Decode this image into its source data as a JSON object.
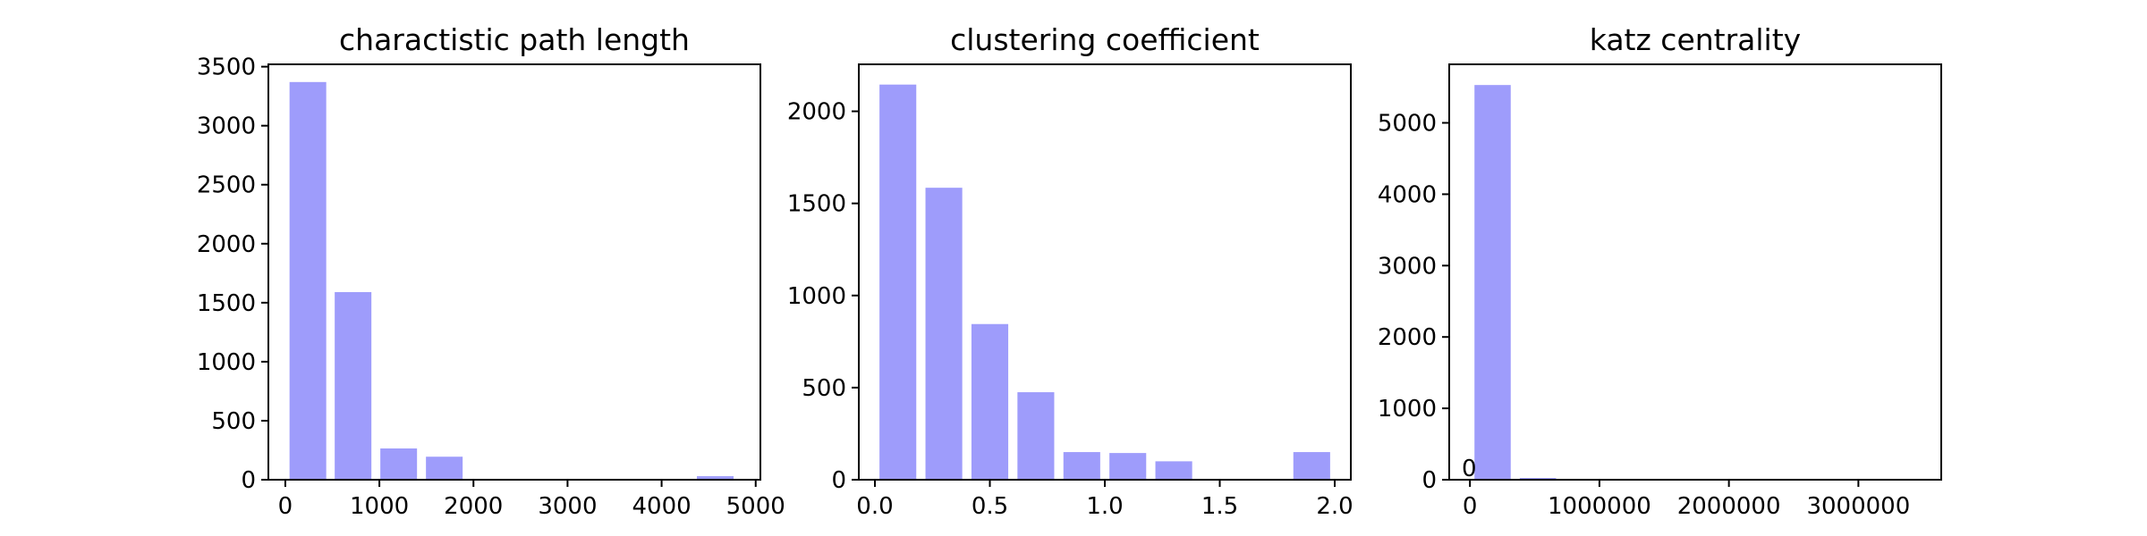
{
  "chart_data": [
    {
      "type": "bar",
      "title": "charactistic path length",
      "xlabel": "",
      "ylabel": "",
      "color": "#9e9cfb",
      "xlim": [
        -180,
        5050
      ],
      "ylim": [
        0,
        3520
      ],
      "x_ticks": [
        0,
        1000,
        2000,
        3000,
        4000,
        5000
      ],
      "x_tick_labels": [
        "0",
        "1000",
        "2000",
        "3000",
        "4000",
        "5000"
      ],
      "y_ticks": [
        0,
        500,
        1000,
        1500,
        2000,
        2500,
        3000,
        3500
      ],
      "y_tick_labels": [
        "0",
        "500",
        "1000",
        "1500",
        "2000",
        "2500",
        "3000",
        "3500"
      ],
      "bar_width": 390,
      "x": [
        240,
        720,
        1205,
        1690,
        2170,
        2650,
        3130,
        3610,
        4090,
        4570
      ],
      "values": [
        3370,
        1590,
        265,
        195,
        0,
        0,
        0,
        0,
        0,
        30
      ]
    },
    {
      "type": "bar",
      "title": "clustering coefficient",
      "xlabel": "",
      "ylabel": "",
      "color": "#9e9cfb",
      "xlim": [
        -0.07,
        2.07
      ],
      "ylim": [
        0,
        2255
      ],
      "x_ticks": [
        0.0,
        0.5,
        1.0,
        1.5,
        2.0
      ],
      "x_tick_labels": [
        "0.0",
        "0.5",
        "1.0",
        "1.5",
        "2.0"
      ],
      "y_ticks": [
        0,
        500,
        1000,
        1500,
        2000
      ],
      "y_tick_labels": [
        "0",
        "500",
        "1000",
        "1500",
        "2000"
      ],
      "bar_width": 0.16,
      "x": [
        0.1,
        0.3,
        0.5,
        0.7,
        0.9,
        1.1,
        1.3,
        1.5,
        1.7,
        1.9
      ],
      "values": [
        2145,
        1585,
        845,
        475,
        150,
        145,
        100,
        0,
        0,
        150
      ]
    },
    {
      "type": "bar",
      "title": "katz centrality",
      "xlabel": "",
      "ylabel": "",
      "color": "#9e9cfb",
      "xlim": [
        -160000,
        3640000
      ],
      "ylim": [
        0,
        5820
      ],
      "x_ticks": [
        0,
        1000000,
        2000000,
        3000000
      ],
      "x_tick_labels": [
        "0",
        "1000000",
        "2000000",
        "3000000"
      ],
      "y_ticks": [
        0,
        1000,
        2000,
        3000,
        4000,
        5000
      ],
      "y_tick_labels": [
        "0",
        "1000",
        "2000",
        "3000",
        "4000",
        "5000"
      ],
      "bar_width": 280000,
      "x": [
        175000,
        525000,
        875000,
        1225000,
        1575000,
        1925000,
        2275000,
        2625000,
        2975000,
        3325000
      ],
      "values": [
        5530,
        25,
        0,
        0,
        0,
        0,
        0,
        0,
        0,
        0
      ],
      "annotation": "0"
    }
  ]
}
